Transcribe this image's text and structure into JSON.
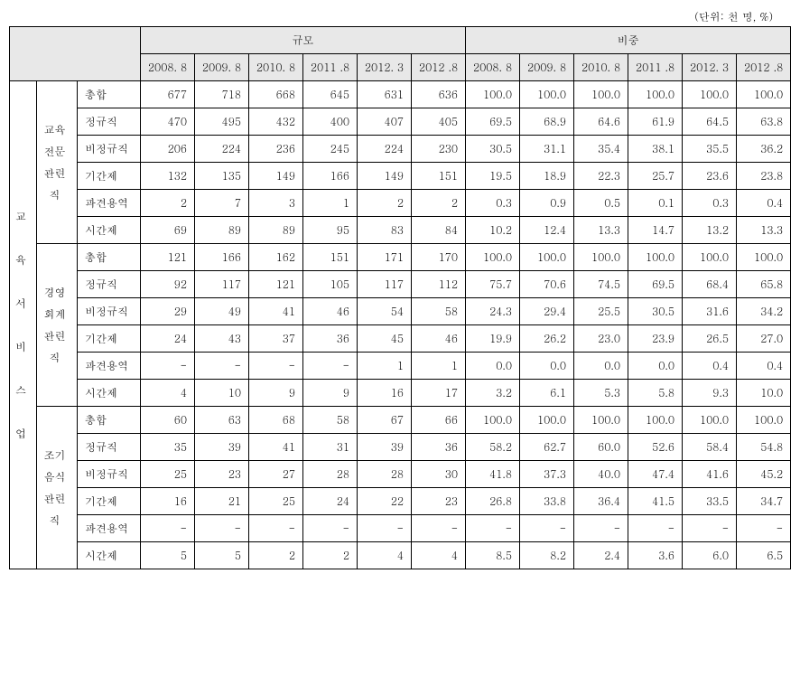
{
  "unit_label": "(단위: 천 명, %)",
  "headers": {
    "group1": "규모",
    "group2": "비중",
    "periods": [
      "2008. 8",
      "2009. 8",
      "2010. 8",
      "2011 .8",
      "2012. 3",
      "2012 .8"
    ]
  },
  "industry_label": "교 육 서 비 스 업",
  "groups": [
    {
      "label": "교육 전문 관련 직",
      "rows": [
        {
          "label": "총합",
          "scale": [
            "677",
            "718",
            "668",
            "645",
            "631",
            "636"
          ],
          "share": [
            "100.0",
            "100.0",
            "100.0",
            "100.0",
            "100.0",
            "100.0"
          ]
        },
        {
          "label": "정규직",
          "scale": [
            "470",
            "495",
            "432",
            "400",
            "407",
            "405"
          ],
          "share": [
            "69.5",
            "68.9",
            "64.6",
            "61.9",
            "64.5",
            "63.8"
          ]
        },
        {
          "label": "비정규직",
          "scale": [
            "206",
            "224",
            "236",
            "245",
            "224",
            "230"
          ],
          "share": [
            "30.5",
            "31.1",
            "35.4",
            "38.1",
            "35.5",
            "36.2"
          ]
        },
        {
          "label": "기간제",
          "scale": [
            "132",
            "135",
            "149",
            "166",
            "149",
            "151"
          ],
          "share": [
            "19.5",
            "18.9",
            "22.3",
            "25.7",
            "23.6",
            "23.8"
          ]
        },
        {
          "label": "파견용역",
          "scale": [
            "2",
            "7",
            "3",
            "1",
            "2",
            "2"
          ],
          "share": [
            "0.3",
            "0.9",
            "0.5",
            "0.1",
            "0.3",
            "0.4"
          ]
        },
        {
          "label": "시간제",
          "scale": [
            "69",
            "89",
            "89",
            "95",
            "83",
            "84"
          ],
          "share": [
            "10.2",
            "12.4",
            "13.3",
            "14.7",
            "13.2",
            "13.3"
          ]
        }
      ]
    },
    {
      "label": "경영 회계 관련 직",
      "rows": [
        {
          "label": "총합",
          "scale": [
            "121",
            "166",
            "162",
            "151",
            "171",
            "170"
          ],
          "share": [
            "100.0",
            "100.0",
            "100.0",
            "100.0",
            "100.0",
            "100.0"
          ]
        },
        {
          "label": "정규직",
          "scale": [
            "92",
            "117",
            "121",
            "105",
            "117",
            "112"
          ],
          "share": [
            "75.7",
            "70.6",
            "74.5",
            "69.5",
            "68.4",
            "65.8"
          ]
        },
        {
          "label": "비정규직",
          "scale": [
            "29",
            "49",
            "41",
            "46",
            "54",
            "58"
          ],
          "share": [
            "24.3",
            "29.4",
            "25.5",
            "30.5",
            "31.6",
            "34.2"
          ]
        },
        {
          "label": "기간제",
          "scale": [
            "24",
            "43",
            "37",
            "36",
            "45",
            "46"
          ],
          "share": [
            "19.9",
            "26.2",
            "23.0",
            "23.9",
            "26.5",
            "27.0"
          ]
        },
        {
          "label": "파견용역",
          "scale": [
            "-",
            "-",
            "-",
            "-",
            "1",
            "1"
          ],
          "share": [
            "0.0",
            "0.0",
            "0.0",
            "0.0",
            "0.4",
            "0.4"
          ]
        },
        {
          "label": "시간제",
          "scale": [
            "4",
            "10",
            "9",
            "9",
            "16",
            "17"
          ],
          "share": [
            "3.2",
            "6.1",
            "5.3",
            "5.8",
            "9.3",
            "10.0"
          ]
        }
      ]
    },
    {
      "label": "조기 음식 관련 직",
      "rows": [
        {
          "label": "총합",
          "scale": [
            "60",
            "63",
            "68",
            "58",
            "67",
            "66"
          ],
          "share": [
            "100.0",
            "100.0",
            "100.0",
            "100.0",
            "100.0",
            "100.0"
          ]
        },
        {
          "label": "정규직",
          "scale": [
            "35",
            "39",
            "41",
            "31",
            "39",
            "36"
          ],
          "share": [
            "58.2",
            "62.7",
            "60.0",
            "52.6",
            "58.4",
            "54.8"
          ]
        },
        {
          "label": "비정규직",
          "scale": [
            "25",
            "23",
            "27",
            "28",
            "28",
            "30"
          ],
          "share": [
            "41.8",
            "37.3",
            "40.0",
            "47.4",
            "41.6",
            "45.2"
          ]
        },
        {
          "label": "기간제",
          "scale": [
            "16",
            "21",
            "25",
            "24",
            "22",
            "23"
          ],
          "share": [
            "26.8",
            "33.8",
            "36.4",
            "41.5",
            "33.5",
            "34.7"
          ]
        },
        {
          "label": "파견용역",
          "scale": [
            "-",
            "-",
            "-",
            "-",
            "-",
            "-"
          ],
          "share": [
            "-",
            "-",
            "-",
            "-",
            "-",
            "-"
          ]
        },
        {
          "label": "시간제",
          "scale": [
            "5",
            "5",
            "2",
            "2",
            "4",
            "4"
          ],
          "share": [
            "8.5",
            "8.2",
            "2.4",
            "3.6",
            "6.0",
            "6.5"
          ]
        }
      ]
    }
  ]
}
